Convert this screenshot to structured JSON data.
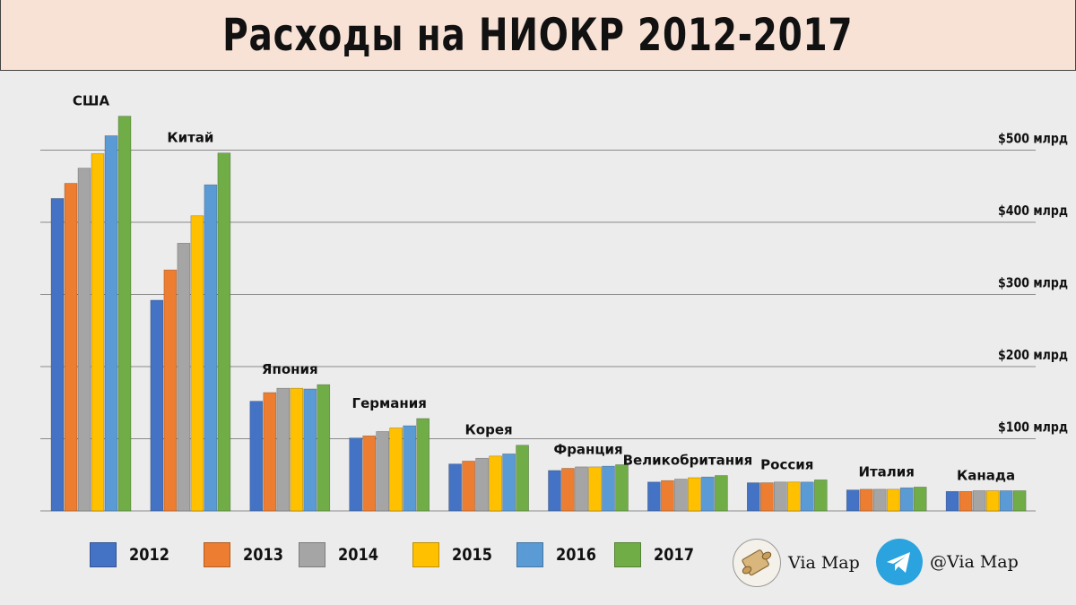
{
  "title": "Расходы на НИОКР 2012-2017",
  "chart_data": {
    "type": "bar",
    "title": "Расходы на НИОКР 2012-2017",
    "categories": [
      "США",
      "Китай",
      "Япония",
      "Германия",
      "Корея",
      "Франция",
      "Великобритания",
      "Россия",
      "Италия",
      "Канада"
    ],
    "series": [
      {
        "name": "2012",
        "color": "#4472c4",
        "values": [
          433,
          292,
          152,
          101,
          65,
          56,
          40,
          39,
          29,
          27
        ]
      },
      {
        "name": "2013",
        "color": "#ed7d31",
        "values": [
          454,
          334,
          164,
          104,
          69,
          59,
          42,
          39,
          30,
          27
        ]
      },
      {
        "name": "2014",
        "color": "#a5a5a5",
        "values": [
          475,
          371,
          170,
          110,
          73,
          61,
          44,
          40,
          30,
          28
        ]
      },
      {
        "name": "2015",
        "color": "#ffc000",
        "values": [
          495,
          409,
          170,
          115,
          76,
          61,
          46,
          40,
          30,
          28
        ]
      },
      {
        "name": "2016",
        "color": "#5b9bd5",
        "values": [
          520,
          452,
          169,
          118,
          79,
          62,
          47,
          40,
          32,
          28
        ]
      },
      {
        "name": "2017",
        "color": "#70ad47",
        "values": [
          547,
          496,
          175,
          128,
          91,
          64,
          49,
          43,
          33,
          28
        ]
      }
    ],
    "y_ticks": [
      {
        "value": 100,
        "label": "$100 млрд"
      },
      {
        "value": 200,
        "label": "$200 млрд"
      },
      {
        "value": 300,
        "label": "$300 млрд"
      },
      {
        "value": 400,
        "label": "$400 млрд"
      },
      {
        "value": 500,
        "label": "$500 млрд"
      }
    ],
    "ylim": [
      0,
      600
    ],
    "grid": true,
    "legend": "bottom"
  },
  "branding": {
    "map_text": "Via Map",
    "telegram_text": "@Via Map",
    "telegram_color": "#2aa3df"
  }
}
